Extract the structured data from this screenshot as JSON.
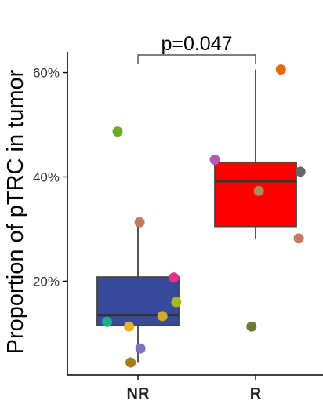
{
  "chart_data": {
    "type": "box",
    "ylabel": "Proportion of pTRC in tumor",
    "categories": [
      "NR",
      "R"
    ],
    "yticks": [
      "20%",
      "40%",
      "60%"
    ],
    "ytick_values": [
      20,
      40,
      60
    ],
    "ylim": [
      2,
      64
    ],
    "annotation": "p=0.047",
    "grid": false,
    "boxes": [
      {
        "name": "NR",
        "color": "#3a4a9a",
        "whisker_low": 4.5,
        "q1": 11.5,
        "median": 13.5,
        "q3": 20.8,
        "whisker_high": 31.3
      },
      {
        "name": "R",
        "color": "#ff0000",
        "whisker_low": 28.2,
        "q1": 30.5,
        "median": 39.2,
        "q3": 42.8,
        "whisker_high": 60.6
      }
    ],
    "points": [
      {
        "group": "NR",
        "value": 48.7,
        "jitter": -0.25,
        "color": "#6aab2a"
      },
      {
        "group": "NR",
        "value": 31.3,
        "jitter": 0.02,
        "color": "#c47a62"
      },
      {
        "group": "NR",
        "value": 20.7,
        "jitter": 0.44,
        "color": "#e6338a"
      },
      {
        "group": "NR",
        "value": 16.0,
        "jitter": 0.47,
        "color": "#a8b81e"
      },
      {
        "group": "NR",
        "value": 13.3,
        "jitter": 0.3,
        "color": "#d6a82c"
      },
      {
        "group": "NR",
        "value": 12.2,
        "jitter": -0.38,
        "color": "#1fae8a"
      },
      {
        "group": "NR",
        "value": 11.3,
        "jitter": -0.11,
        "color": "#e6b32a"
      },
      {
        "group": "NR",
        "value": 7.1,
        "jitter": 0.03,
        "color": "#7b74bd"
      },
      {
        "group": "NR",
        "value": 4.4,
        "jitter": -0.09,
        "color": "#a67c18"
      },
      {
        "group": "R",
        "value": 60.6,
        "jitter": 0.31,
        "color": "#e06c12"
      },
      {
        "group": "R",
        "value": 43.3,
        "jitter": -0.5,
        "color": "#b05ab5"
      },
      {
        "group": "R",
        "value": 41.0,
        "jitter": 0.55,
        "color": "#666666"
      },
      {
        "group": "R",
        "value": 37.3,
        "jitter": 0.04,
        "color": "#a88c5c"
      },
      {
        "group": "R",
        "value": 28.2,
        "jitter": 0.53,
        "color": "#c47a62"
      },
      {
        "group": "R",
        "value": 11.3,
        "jitter": -0.05,
        "color": "#6b7a3a"
      }
    ]
  }
}
